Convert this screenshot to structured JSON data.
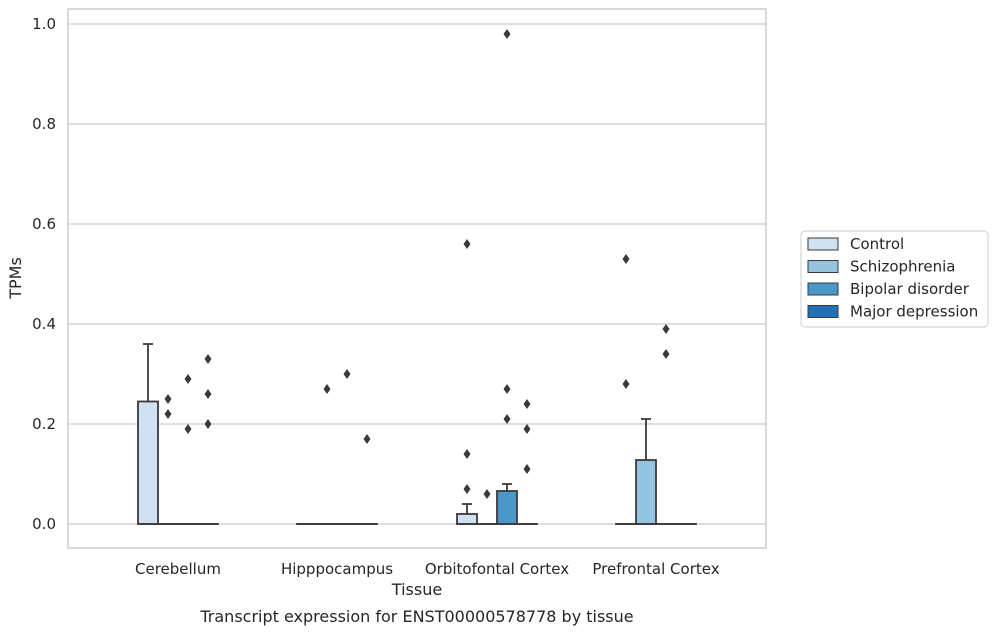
{
  "chart_data": {
    "type": "box",
    "title": "",
    "caption": "Transcript expression for ENST00000578778 by tissue",
    "xlabel": "Tissue",
    "ylabel": "TPMs",
    "ylim": [
      -0.045,
      1.03
    ],
    "yticks": [
      0.0,
      0.2,
      0.4,
      0.6,
      0.8,
      1.0
    ],
    "ytick_labels": [
      "0.0",
      "0.2",
      "0.4",
      "0.6",
      "0.8",
      "1.0"
    ],
    "grid": true,
    "legend_position": "right",
    "categories": [
      "Cerebellum",
      "Hipppocampus",
      "Orbitofontal Cortex",
      "Prefrontal Cortex"
    ],
    "series": [
      {
        "name": "Control",
        "color": "#d0e1f2",
        "boxes": [
          {
            "q1": 0.0,
            "median": 0.0,
            "q3": 0.245,
            "whisker_low": 0.0,
            "whisker_high": 0.36,
            "outliers": []
          },
          {
            "q1": 0.0,
            "median": 0.0,
            "q3": 0.0,
            "whisker_low": 0.0,
            "whisker_high": 0.0,
            "outliers": []
          },
          {
            "q1": 0.0,
            "median": 0.0,
            "q3": 0.02,
            "whisker_low": 0.0,
            "whisker_high": 0.04,
            "outliers": [
              0.07,
              0.14,
              0.56
            ]
          },
          {
            "q1": 0.0,
            "median": 0.0,
            "q3": 0.0,
            "whisker_low": 0.0,
            "whisker_high": 0.0,
            "outliers": [
              0.28,
              0.53
            ]
          }
        ]
      },
      {
        "name": "Schizophrenia",
        "color": "#94c4df",
        "boxes": [
          {
            "q1": 0.0,
            "median": 0.0,
            "q3": 0.0,
            "whisker_low": 0.0,
            "whisker_high": 0.0,
            "outliers": [
              0.22,
              0.25
            ]
          },
          {
            "q1": 0.0,
            "median": 0.0,
            "q3": 0.0,
            "whisker_low": 0.0,
            "whisker_high": 0.0,
            "outliers": [
              0.27
            ]
          },
          {
            "q1": 0.0,
            "median": 0.0,
            "q3": 0.0,
            "whisker_low": 0.0,
            "whisker_high": 0.0,
            "outliers": [
              0.06
            ]
          },
          {
            "q1": 0.0,
            "median": 0.0,
            "q3": 0.128,
            "whisker_low": 0.0,
            "whisker_high": 0.21,
            "outliers": []
          }
        ]
      },
      {
        "name": "Bipolar disorder",
        "color": "#4a98c9",
        "boxes": [
          {
            "q1": 0.0,
            "median": 0.0,
            "q3": 0.0,
            "whisker_low": 0.0,
            "whisker_high": 0.0,
            "outliers": [
              0.19,
              0.29
            ]
          },
          {
            "q1": 0.0,
            "median": 0.0,
            "q3": 0.0,
            "whisker_low": 0.0,
            "whisker_high": 0.0,
            "outliers": [
              0.3
            ]
          },
          {
            "q1": 0.0,
            "median": 0.0,
            "q3": 0.066,
            "whisker_low": 0.0,
            "whisker_high": 0.08,
            "outliers": [
              0.21,
              0.27,
              0.98
            ]
          },
          {
            "q1": 0.0,
            "median": 0.0,
            "q3": 0.0,
            "whisker_low": 0.0,
            "whisker_high": 0.0,
            "outliers": [
              0.34,
              0.39
            ]
          }
        ]
      },
      {
        "name": "Major depression",
        "color": "#2270b5",
        "boxes": [
          {
            "q1": 0.0,
            "median": 0.0,
            "q3": 0.0,
            "whisker_low": 0.0,
            "whisker_high": 0.0,
            "outliers": [
              0.2,
              0.26,
              0.33
            ]
          },
          {
            "q1": 0.0,
            "median": 0.0,
            "q3": 0.0,
            "whisker_low": 0.0,
            "whisker_high": 0.0,
            "outliers": [
              0.17
            ]
          },
          {
            "q1": 0.0,
            "median": 0.0,
            "q3": 0.0,
            "whisker_low": 0.0,
            "whisker_high": 0.0,
            "outliers": [
              0.11,
              0.19,
              0.24
            ]
          },
          {
            "q1": 0.0,
            "median": 0.0,
            "q3": 0.0,
            "whisker_low": 0.0,
            "whisker_high": 0.0,
            "outliers": []
          }
        ]
      }
    ]
  }
}
